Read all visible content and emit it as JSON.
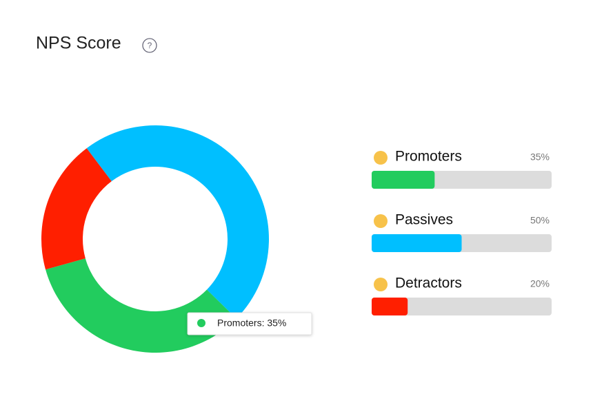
{
  "chart_data": {
    "type": "donut",
    "title": "NPS Score",
    "help_icon": "?",
    "categories": [
      "Promoters",
      "Passives",
      "Detractors"
    ],
    "values": [
      35,
      50,
      20
    ],
    "value_labels": [
      "35%",
      "50%",
      "20%"
    ],
    "colors": [
      "#22cc5e",
      "#00bfff",
      "#ff1f00"
    ],
    "xlim": [
      0,
      100
    ],
    "tooltip": "Promoters: 35%"
  }
}
